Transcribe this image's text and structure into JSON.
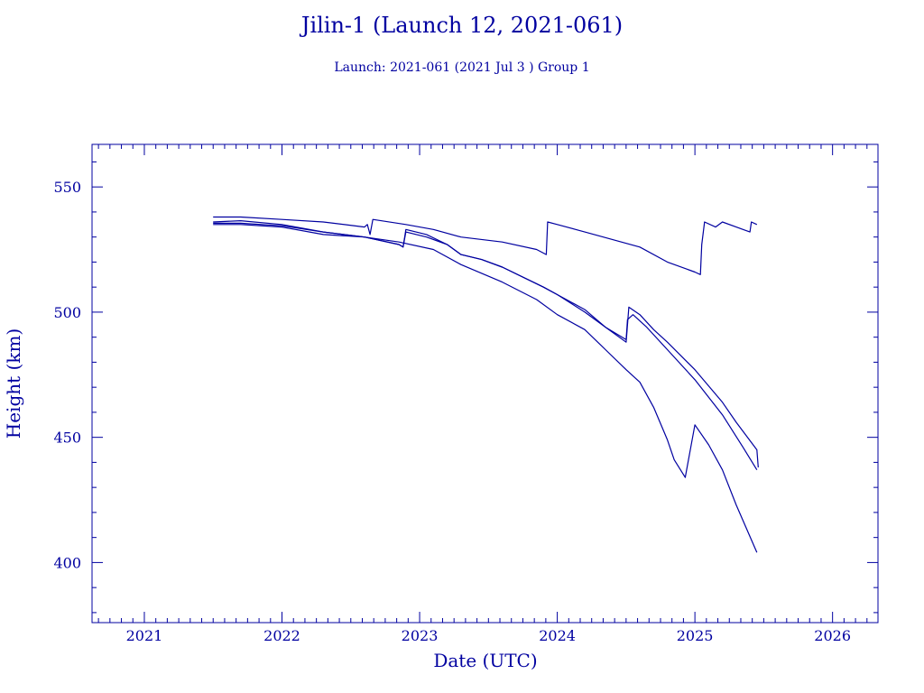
{
  "chart_data": {
    "type": "line",
    "title": "Jilin-1 (Launch 12, 2021-061)",
    "subtitle": "Launch: 2021-061  (2021 Jul  3 )  Group 1",
    "xlabel": "Date (UTC)",
    "ylabel": "Height (km)",
    "xlim": [
      2020.62,
      2026.33
    ],
    "ylim": [
      376,
      567
    ],
    "xticks": [
      2021,
      2022,
      2023,
      2024,
      2025,
      2026
    ],
    "yticks": [
      400,
      450,
      500,
      550
    ],
    "grid": false,
    "color": "#0000a0",
    "series": [
      {
        "points": [
          [
            2021.5,
            536
          ],
          [
            2021.7,
            536.5
          ],
          [
            2022.0,
            535
          ],
          [
            2022.3,
            532
          ],
          [
            2022.6,
            530
          ],
          [
            2022.85,
            528
          ],
          [
            2023.1,
            525
          ],
          [
            2023.3,
            519
          ],
          [
            2023.6,
            512
          ],
          [
            2023.85,
            505
          ],
          [
            2024.0,
            499
          ],
          [
            2024.2,
            493
          ],
          [
            2024.35,
            485
          ],
          [
            2024.5,
            477
          ],
          [
            2024.6,
            472
          ],
          [
            2024.7,
            462
          ],
          [
            2024.8,
            449
          ],
          [
            2024.85,
            441
          ],
          [
            2024.93,
            434
          ],
          [
            2025.0,
            455
          ],
          [
            2025.1,
            447
          ],
          [
            2025.2,
            437
          ],
          [
            2025.3,
            423
          ],
          [
            2025.45,
            404
          ]
        ]
      },
      {
        "points": [
          [
            2021.5,
            535.5
          ],
          [
            2021.7,
            535.5
          ],
          [
            2022.0,
            534.5
          ],
          [
            2022.3,
            532
          ],
          [
            2022.6,
            530
          ],
          [
            2022.85,
            527
          ],
          [
            2022.88,
            526
          ],
          [
            2022.9,
            533
          ],
          [
            2023.05,
            531
          ],
          [
            2023.2,
            527
          ],
          [
            2023.3,
            523
          ],
          [
            2023.45,
            521
          ],
          [
            2023.6,
            518
          ],
          [
            2023.9,
            510
          ],
          [
            2024.0,
            507
          ],
          [
            2024.2,
            501
          ],
          [
            2024.35,
            494
          ],
          [
            2024.5,
            489
          ],
          [
            2024.51,
            497
          ],
          [
            2024.55,
            499
          ],
          [
            2024.65,
            494
          ],
          [
            2024.8,
            485
          ],
          [
            2025.0,
            473
          ],
          [
            2025.2,
            459
          ],
          [
            2025.35,
            446
          ],
          [
            2025.45,
            437
          ]
        ]
      },
      {
        "points": [
          [
            2021.5,
            535
          ],
          [
            2021.7,
            535
          ],
          [
            2022.0,
            534
          ],
          [
            2022.3,
            531
          ],
          [
            2022.6,
            530
          ],
          [
            2022.85,
            527
          ],
          [
            2022.88,
            526
          ],
          [
            2022.9,
            532
          ],
          [
            2023.05,
            530
          ],
          [
            2023.2,
            527
          ],
          [
            2023.3,
            523
          ],
          [
            2023.45,
            521
          ],
          [
            2023.6,
            518
          ],
          [
            2023.9,
            510
          ],
          [
            2024.0,
            507
          ],
          [
            2024.2,
            500
          ],
          [
            2024.35,
            494
          ],
          [
            2024.5,
            488
          ],
          [
            2024.52,
            502
          ],
          [
            2024.6,
            499
          ],
          [
            2024.7,
            493
          ],
          [
            2024.8,
            488
          ],
          [
            2025.0,
            477
          ],
          [
            2025.2,
            464
          ],
          [
            2025.3,
            456
          ],
          [
            2025.45,
            445
          ],
          [
            2025.46,
            438
          ]
        ]
      },
      {
        "points": [
          [
            2021.5,
            538
          ],
          [
            2021.7,
            538
          ],
          [
            2022.0,
            537
          ],
          [
            2022.3,
            536
          ],
          [
            2022.6,
            534
          ],
          [
            2022.62,
            535
          ],
          [
            2022.64,
            531
          ],
          [
            2022.66,
            537
          ],
          [
            2022.9,
            535
          ],
          [
            2023.1,
            533
          ],
          [
            2023.3,
            530
          ],
          [
            2023.6,
            528
          ],
          [
            2023.85,
            525
          ],
          [
            2023.92,
            523
          ],
          [
            2023.93,
            536
          ],
          [
            2024.0,
            535
          ],
          [
            2024.2,
            532
          ],
          [
            2024.4,
            529
          ],
          [
            2024.6,
            526
          ],
          [
            2024.8,
            520
          ],
          [
            2025.0,
            516
          ],
          [
            2025.04,
            515
          ],
          [
            2025.05,
            527
          ],
          [
            2025.07,
            536
          ],
          [
            2025.15,
            534
          ],
          [
            2025.2,
            536
          ],
          [
            2025.3,
            534
          ],
          [
            2025.4,
            532
          ],
          [
            2025.41,
            536
          ],
          [
            2025.45,
            535
          ]
        ]
      }
    ]
  }
}
